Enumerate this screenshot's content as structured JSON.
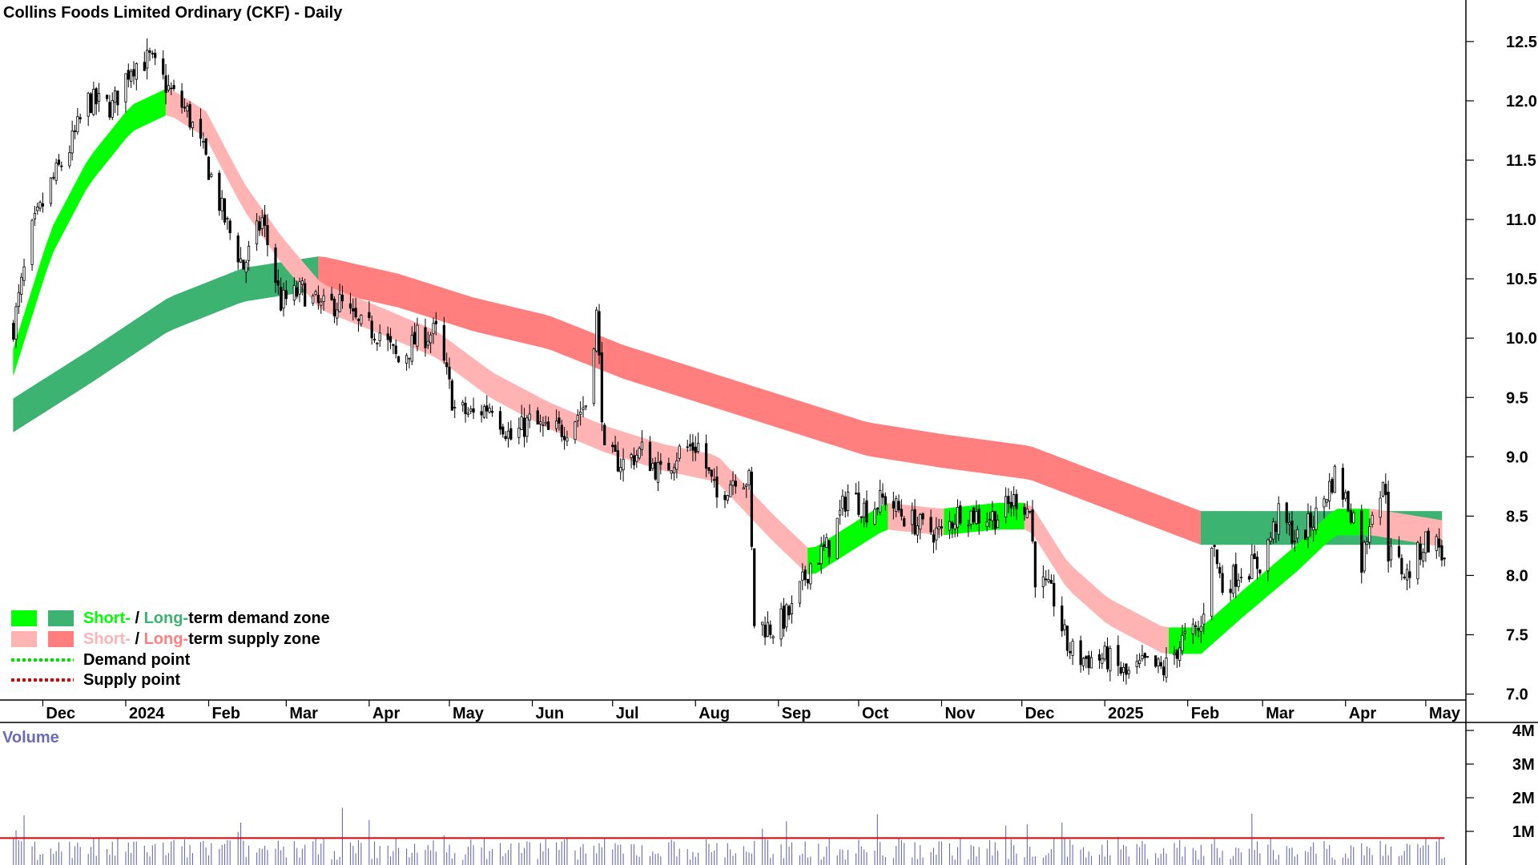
{
  "title": "Collins Foods Limited Ordinary (CKF) - Daily",
  "volume_label": "Volume",
  "colors": {
    "short_demand": "#00ff00",
    "long_demand": "#3cb371",
    "short_supply": "#ffb3b3",
    "long_supply": "#ff7f7f",
    "transition": "#ff6a00",
    "demand_point": "#00dd00",
    "supply_point": "#dd0000",
    "volume_bar": "#6b6bb5",
    "volume_avg": "#dd0000",
    "candle": "#000000"
  },
  "legend": [
    {
      "id": "demand-zone",
      "swatches": [
        "short_demand",
        "long_demand"
      ],
      "prefix_a": "Short-",
      "sep": " / ",
      "prefix_b": "Long-",
      "suffix": "term demand zone"
    },
    {
      "id": "supply-zone",
      "swatches": [
        "short_supply",
        "long_supply"
      ],
      "prefix_a": "Short-",
      "sep": " / ",
      "prefix_b": "Long-",
      "suffix": "term supply zone"
    },
    {
      "id": "demand-point",
      "line": "demand_point",
      "text": "Demand point"
    },
    {
      "id": "supply-point",
      "line": "supply_point",
      "text": "Supply point"
    }
  ],
  "chart_data": {
    "type": "candlestick",
    "title": "Collins Foods Limited Ordinary (CKF) - Daily",
    "x_tick_labels": [
      "Dec",
      "2024",
      "Feb",
      "Mar",
      "Apr",
      "May",
      "Jun",
      "Jul",
      "Aug",
      "Sep",
      "Oct",
      "Nov",
      "Dec",
      "2025",
      "Feb",
      "Mar",
      "Apr",
      "May"
    ],
    "y_tick_labels": [
      "12.5",
      "12.0",
      "11.5",
      "11.0",
      "10.5",
      "10.0",
      "9.5",
      "9.0",
      "8.5",
      "8.0",
      "7.5",
      "7.0"
    ],
    "ylim": [
      6.95,
      12.85
    ],
    "volume_tick_labels": [
      "4M",
      "3M",
      "2M",
      "1M"
    ],
    "volume_ylim": [
      0,
      4000000
    ],
    "price_path": [
      [
        "2023-11-20",
        10.1
      ],
      [
        "2023-11-27",
        10.9
      ],
      [
        "2023-12-04",
        11.3
      ],
      [
        "2023-12-11",
        11.6
      ],
      [
        "2023-12-18",
        12.0
      ],
      [
        "2023-12-27",
        11.95
      ],
      [
        "2024-01-03",
        12.3
      ],
      [
        "2024-01-10",
        12.35
      ],
      [
        "2024-01-17",
        12.1
      ],
      [
        "2024-01-24",
        11.9
      ],
      [
        "2024-01-31",
        11.5
      ],
      [
        "2024-02-07",
        11.0
      ],
      [
        "2024-02-14",
        10.6
      ],
      [
        "2024-02-21",
        11.0
      ],
      [
        "2024-02-28",
        10.3
      ],
      [
        "2024-03-07",
        10.4
      ],
      [
        "2024-03-14",
        10.25
      ],
      [
        "2024-03-21",
        10.3
      ],
      [
        "2024-03-28",
        10.1
      ],
      [
        "2024-04-05",
        10.05
      ],
      [
        "2024-04-12",
        9.8
      ],
      [
        "2024-04-19",
        10.0
      ],
      [
        "2024-04-26",
        10.05
      ],
      [
        "2024-05-03",
        9.4
      ],
      [
        "2024-05-10",
        9.35
      ],
      [
        "2024-05-17",
        9.45
      ],
      [
        "2024-05-24",
        9.15
      ],
      [
        "2024-05-31",
        9.3
      ],
      [
        "2024-06-07",
        9.2
      ],
      [
        "2024-06-14",
        9.25
      ],
      [
        "2024-06-21",
        9.45
      ],
      [
        "2024-06-25",
        10.2
      ],
      [
        "2024-06-28",
        9.0
      ],
      [
        "2024-07-05",
        8.95
      ],
      [
        "2024-07-12",
        9.05
      ],
      [
        "2024-07-19",
        8.85
      ],
      [
        "2024-07-26",
        9.05
      ],
      [
        "2024-08-02",
        9.1
      ],
      [
        "2024-08-09",
        8.65
      ],
      [
        "2024-08-16",
        8.85
      ],
      [
        "2024-08-21",
        8.8
      ],
      [
        "2024-08-23",
        7.6
      ],
      [
        "2024-08-30",
        7.55
      ],
      [
        "2024-09-06",
        7.7
      ],
      [
        "2024-09-13",
        8.1
      ],
      [
        "2024-09-20",
        8.25
      ],
      [
        "2024-09-27",
        8.7
      ],
      [
        "2024-10-04",
        8.55
      ],
      [
        "2024-10-11",
        8.65
      ],
      [
        "2024-10-18",
        8.5
      ],
      [
        "2024-10-25",
        8.4
      ],
      [
        "2024-11-01",
        8.35
      ],
      [
        "2024-11-08",
        8.55
      ],
      [
        "2024-11-15",
        8.5
      ],
      [
        "2024-11-22",
        8.5
      ],
      [
        "2024-11-29",
        8.65
      ],
      [
        "2024-12-04",
        8.55
      ],
      [
        "2024-12-06",
        8.0
      ],
      [
        "2024-12-13",
        7.8
      ],
      [
        "2024-12-18",
        7.4
      ],
      [
        "2024-12-23",
        7.3
      ],
      [
        "2025-01-02",
        7.3
      ],
      [
        "2025-01-09",
        7.15
      ],
      [
        "2025-01-16",
        7.25
      ],
      [
        "2025-01-23",
        7.2
      ],
      [
        "2025-01-30",
        7.45
      ],
      [
        "2025-02-06",
        7.55
      ],
      [
        "2025-02-10",
        8.3
      ],
      [
        "2025-02-14",
        7.9
      ],
      [
        "2025-02-21",
        8.05
      ],
      [
        "2025-02-28",
        8.1
      ],
      [
        "2025-03-07",
        8.5
      ],
      [
        "2025-03-14",
        8.3
      ],
      [
        "2025-03-21",
        8.5
      ],
      [
        "2025-03-28",
        8.85
      ],
      [
        "2025-04-04",
        8.5
      ],
      [
        "2025-04-07",
        8.1
      ],
      [
        "2025-04-11",
        8.6
      ],
      [
        "2025-04-16",
        8.75
      ],
      [
        "2025-04-17",
        8.2
      ],
      [
        "2025-04-24",
        8.0
      ],
      [
        "2025-05-01",
        8.3
      ],
      [
        "2025-05-06",
        8.25
      ],
      [
        "2025-05-08",
        8.1
      ]
    ],
    "series": [
      {
        "name": "Short-term demand zone",
        "color": "#00ff00"
      },
      {
        "name": "Long-term demand zone",
        "color": "#3cb371"
      },
      {
        "name": "Short-term supply zone",
        "color": "#ffb3b3"
      },
      {
        "name": "Long-term supply zone",
        "color": "#ff7f7f"
      },
      {
        "name": "Demand point",
        "color": "#00dd00"
      },
      {
        "name": "Supply point",
        "color": "#dd0000"
      }
    ],
    "short_band_path": [
      [
        "2023-11-20",
        9.8
      ],
      [
        "2023-12-04",
        10.8
      ],
      [
        "2023-12-18",
        11.4
      ],
      [
        "2024-01-03",
        11.85
      ],
      [
        "2024-01-17",
        12.0
      ],
      [
        "2024-01-31",
        11.8
      ],
      [
        "2024-02-14",
        11.2
      ],
      [
        "2024-02-28",
        10.75
      ],
      [
        "2024-03-14",
        10.35
      ],
      [
        "2024-04-05",
        10.15
      ],
      [
        "2024-04-26",
        9.95
      ],
      [
        "2024-05-17",
        9.6
      ],
      [
        "2024-06-07",
        9.35
      ],
      [
        "2024-06-28",
        9.15
      ],
      [
        "2024-07-19",
        9.0
      ],
      [
        "2024-08-09",
        8.9
      ],
      [
        "2024-08-30",
        8.4
      ],
      [
        "2024-09-13",
        8.1
      ],
      [
        "2024-09-27",
        8.3
      ],
      [
        "2024-10-11",
        8.5
      ],
      [
        "2024-11-01",
        8.45
      ],
      [
        "2024-11-22",
        8.5
      ],
      [
        "2024-12-04",
        8.5
      ],
      [
        "2024-12-18",
        8.0
      ],
      [
        "2025-01-02",
        7.7
      ],
      [
        "2025-01-23",
        7.45
      ],
      [
        "2025-02-06",
        7.45
      ],
      [
        "2025-02-21",
        7.75
      ],
      [
        "2025-03-14",
        8.15
      ],
      [
        "2025-03-28",
        8.45
      ],
      [
        "2025-04-11",
        8.45
      ],
      [
        "2025-05-08",
        8.35
      ]
    ],
    "long_band_path": [
      [
        "2023-11-20",
        9.35
      ],
      [
        "2023-12-18",
        9.75
      ],
      [
        "2024-01-17",
        10.2
      ],
      [
        "2024-02-14",
        10.45
      ],
      [
        "2024-03-14",
        10.55
      ],
      [
        "2024-04-12",
        10.4
      ],
      [
        "2024-05-10",
        10.2
      ],
      [
        "2024-06-07",
        10.05
      ],
      [
        "2024-07-05",
        9.8
      ],
      [
        "2024-08-02",
        9.6
      ],
      [
        "2024-09-06",
        9.35
      ],
      [
        "2024-10-04",
        9.15
      ],
      [
        "2024-11-01",
        9.05
      ],
      [
        "2024-12-04",
        8.95
      ],
      [
        "2025-01-02",
        8.7
      ],
      [
        "2025-02-06",
        8.4
      ],
      [
        "2025-03-07",
        8.4
      ],
      [
        "2025-04-04",
        8.4
      ],
      [
        "2025-05-08",
        8.4
      ]
    ],
    "volume_average": 800000
  }
}
